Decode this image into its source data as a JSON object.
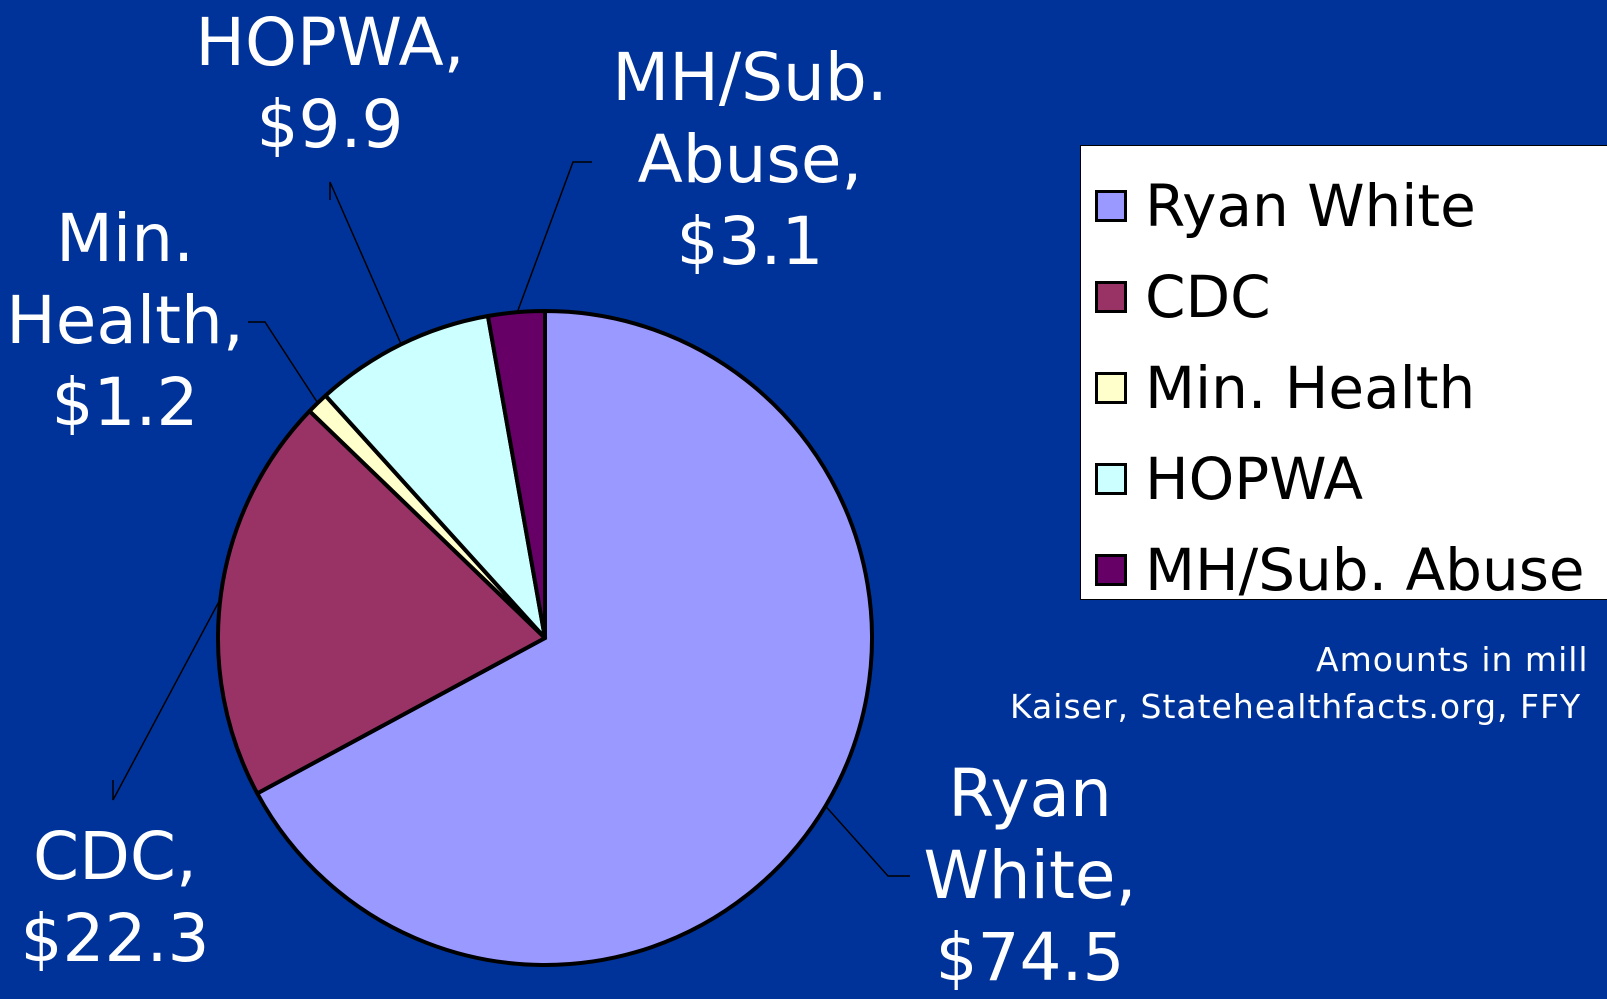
{
  "chart_data": {
    "type": "pie",
    "slices": [
      {
        "name": "Ryan White",
        "value": 74.5,
        "label_line1": "Ryan",
        "label_line2": "White,",
        "label_line3": "$74.5",
        "color": "#9999ff"
      },
      {
        "name": "CDC",
        "value": 22.3,
        "label_line1": "CDC,",
        "label_line2": "$22.3",
        "color": "#993366"
      },
      {
        "name": "Min. Health",
        "value": 1.2,
        "label_line1": "Min.",
        "label_line2": "Health,",
        "label_line3": "$1.2",
        "color": "#ffffcc"
      },
      {
        "name": "HOPWA",
        "value": 9.9,
        "label_line1": "HOPWA,",
        "label_line2": "$9.9",
        "color": "#ccffff"
      },
      {
        "name": "MH/Sub. Abuse",
        "value": 3.1,
        "label_line1": "MH/Sub.",
        "label_line2": "Abuse,",
        "label_line3": "$3.1",
        "color": "#660066"
      }
    ],
    "legend_position": "right",
    "start_angle_deg": 0,
    "direction": "clockwise"
  },
  "notes": {
    "line1": "Amounts in mill",
    "line2": "Kaiser, Statehealthfacts.org, FFY"
  },
  "colors": {
    "background": "#003399",
    "text": "#ffffff"
  }
}
